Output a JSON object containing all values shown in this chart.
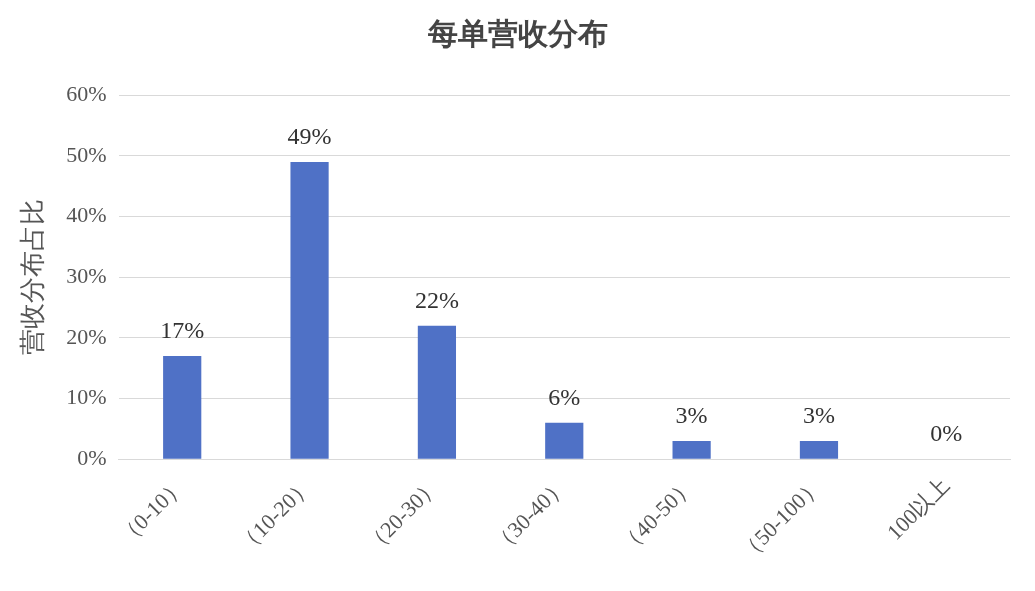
{
  "chart_data": {
    "type": "bar",
    "title": "每单营收分布",
    "ylabel": "营收分布占比",
    "categories": [
      "（0-10）",
      "（10-20）",
      "（20-30）",
      "（30-40）",
      "（40-50）",
      "（50-100）",
      "100以上"
    ],
    "values": [
      17,
      49,
      22,
      6,
      3,
      3,
      0
    ],
    "value_labels": [
      "17%",
      "49%",
      "22%",
      "6%",
      "3%",
      "3%",
      "0%"
    ],
    "color": "#4f71c6",
    "ylim": [
      0,
      60
    ],
    "yticks": [
      {
        "value": 0,
        "label": "0%"
      },
      {
        "value": 10,
        "label": "10%"
      },
      {
        "value": 20,
        "label": "20%"
      },
      {
        "value": 30,
        "label": "30%"
      },
      {
        "value": 40,
        "label": "40%"
      },
      {
        "value": 50,
        "label": "50%"
      },
      {
        "value": 60,
        "label": "60%"
      }
    ],
    "grid": "y",
    "legend": false
  }
}
